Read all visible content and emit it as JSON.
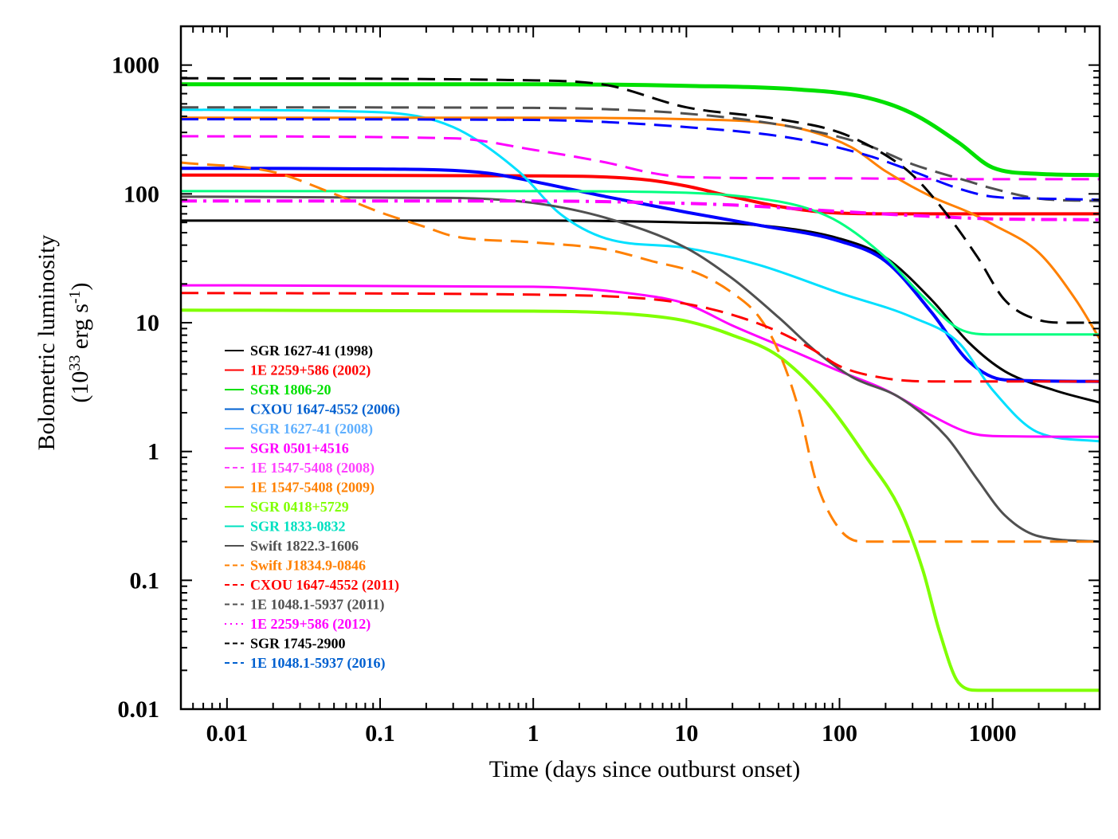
{
  "chart_data": {
    "type": "line",
    "title": "",
    "xlabel": "Time (days since outburst onset)",
    "ylabel": "Bolometric luminosity",
    "ylabel_units": "(10^33 erg s^-1)",
    "ylabel_units_parts": {
      "open": "(10",
      "exp1": "33",
      "mid": " erg s",
      "exp2": "-1",
      "close": ")"
    },
    "xscale": "log",
    "yscale": "log",
    "xlim": [
      0.005,
      5000
    ],
    "ylim": [
      0.01,
      2000
    ],
    "x_ticks": [
      {
        "value": 0.01,
        "label": "0.01"
      },
      {
        "value": 0.1,
        "label": "0.1"
      },
      {
        "value": 1,
        "label": "1"
      },
      {
        "value": 10,
        "label": "10"
      },
      {
        "value": 100,
        "label": "100"
      },
      {
        "value": 1000,
        "label": "1000"
      }
    ],
    "y_ticks": [
      {
        "value": 0.01,
        "label": "0.01"
      },
      {
        "value": 0.1,
        "label": "0.1"
      },
      {
        "value": 1,
        "label": "1"
      },
      {
        "value": 10,
        "label": "10"
      },
      {
        "value": 100,
        "label": "100"
      },
      {
        "value": 1000,
        "label": "1000"
      }
    ],
    "legend_position": "lower-left",
    "series": [
      {
        "name": "SGR 1627-41 (1998)",
        "color": "#000000",
        "dash": "solid",
        "width": 3,
        "points": [
          [
            0.005,
            62
          ],
          [
            1,
            62
          ],
          [
            10,
            60
          ],
          [
            30,
            57
          ],
          [
            100,
            45
          ],
          [
            200,
            32
          ],
          [
            400,
            15
          ],
          [
            700,
            7
          ],
          [
            1200,
            4.2
          ],
          [
            2500,
            3
          ],
          [
            5000,
            2.4
          ]
        ]
      },
      {
        "name": "1E 2259+586 (2002)",
        "color": "#ff0000",
        "dash": "solid",
        "width": 4,
        "points": [
          [
            0.005,
            140
          ],
          [
            1,
            138
          ],
          [
            5,
            130
          ],
          [
            10,
            115
          ],
          [
            20,
            95
          ],
          [
            40,
            80
          ],
          [
            80,
            72
          ],
          [
            200,
            70
          ],
          [
            1000,
            70
          ],
          [
            5000,
            70
          ]
        ]
      },
      {
        "name": "SGR 1806-20",
        "color": "#00e000",
        "dash": "solid",
        "width": 5,
        "points": [
          [
            0.005,
            710
          ],
          [
            1,
            710
          ],
          [
            10,
            690
          ],
          [
            50,
            650
          ],
          [
            150,
            560
          ],
          [
            300,
            420
          ],
          [
            600,
            250
          ],
          [
            1000,
            160
          ],
          [
            2000,
            143
          ],
          [
            5000,
            140
          ]
        ]
      },
      {
        "name": "CXOU 1647-4552 (2006)",
        "color": "#0000ff",
        "dash": "solid",
        "width": 4,
        "points": [
          [
            0.005,
            158
          ],
          [
            0.1,
            156
          ],
          [
            0.5,
            145
          ],
          [
            1,
            125
          ],
          [
            3,
            95
          ],
          [
            10,
            72
          ],
          [
            30,
            57
          ],
          [
            100,
            43
          ],
          [
            200,
            30
          ],
          [
            400,
            12
          ],
          [
            700,
            5
          ],
          [
            1200,
            3.6
          ],
          [
            5000,
            3.5
          ]
        ]
      },
      {
        "name": "SGR 1627-41 (2008)",
        "color": "#00e0ff",
        "dash": "solid",
        "width": 3,
        "points": [
          [
            0.005,
            450
          ],
          [
            0.1,
            430
          ],
          [
            0.3,
            330
          ],
          [
            0.8,
            150
          ],
          [
            1.5,
            70
          ],
          [
            3,
            45
          ],
          [
            10,
            38
          ],
          [
            30,
            28
          ],
          [
            100,
            17
          ],
          [
            300,
            11
          ],
          [
            600,
            7
          ],
          [
            1000,
            3
          ],
          [
            2000,
            1.4
          ],
          [
            5000,
            1.2
          ]
        ]
      },
      {
        "name": "SGR 0501+4516",
        "color": "#ff00ff",
        "dash": "solid",
        "width": 3,
        "points": [
          [
            0.005,
            19.5
          ],
          [
            1,
            19
          ],
          [
            5,
            16.5
          ],
          [
            10,
            14
          ],
          [
            20,
            9.5
          ],
          [
            50,
            6
          ],
          [
            100,
            4.2
          ],
          [
            200,
            3
          ],
          [
            400,
            1.9
          ],
          [
            700,
            1.4
          ],
          [
            1000,
            1.32
          ],
          [
            5000,
            1.3
          ]
        ]
      },
      {
        "name": "1E 1547-5408 (2008)",
        "color": "#ff00ff",
        "dash": "dashed",
        "width": 3,
        "points": [
          [
            0.005,
            280
          ],
          [
            0.3,
            270
          ],
          [
            1,
            220
          ],
          [
            3,
            175
          ],
          [
            6,
            145
          ],
          [
            10,
            135
          ],
          [
            100,
            132
          ],
          [
            1000,
            130
          ],
          [
            5000,
            130
          ]
        ]
      },
      {
        "name": "1E 1547-5408 (2009)",
        "color": "#ff8000",
        "dash": "solid",
        "width": 3,
        "points": [
          [
            0.005,
            390
          ],
          [
            1,
            390
          ],
          [
            10,
            380
          ],
          [
            50,
            330
          ],
          [
            120,
            230
          ],
          [
            200,
            150
          ],
          [
            400,
            95
          ],
          [
            700,
            72
          ],
          [
            1000,
            58
          ],
          [
            2000,
            35
          ],
          [
            3500,
            15
          ],
          [
            5000,
            7.5
          ]
        ]
      },
      {
        "name": "SGR 0418+5729",
        "color": "#80ff00",
        "dash": "solid",
        "width": 4,
        "points": [
          [
            0.005,
            12.5
          ],
          [
            1,
            12.3
          ],
          [
            5,
            11.5
          ],
          [
            10,
            10.3
          ],
          [
            20,
            8
          ],
          [
            40,
            5.5
          ],
          [
            80,
            2.5
          ],
          [
            150,
            0.9
          ],
          [
            250,
            0.35
          ],
          [
            350,
            0.12
          ],
          [
            450,
            0.04
          ],
          [
            600,
            0.016
          ],
          [
            800,
            0.014
          ],
          [
            5000,
            0.014
          ]
        ]
      },
      {
        "name": "SGR 1833-0832",
        "color": "#00ff80",
        "dash": "solid",
        "width": 3,
        "points": [
          [
            0.005,
            105
          ],
          [
            1,
            105
          ],
          [
            10,
            102
          ],
          [
            30,
            92
          ],
          [
            60,
            78
          ],
          [
            100,
            60
          ],
          [
            200,
            32
          ],
          [
            350,
            16
          ],
          [
            600,
            9
          ],
          [
            1000,
            8.1
          ],
          [
            5000,
            8.1
          ]
        ]
      },
      {
        "name": "Swift 1822.3-1606",
        "color": "#505050",
        "dash": "solid",
        "width": 3,
        "points": [
          [
            0.005,
            95
          ],
          [
            0.3,
            93
          ],
          [
            1,
            85
          ],
          [
            3,
            65
          ],
          [
            10,
            38
          ],
          [
            20,
            22
          ],
          [
            40,
            11
          ],
          [
            70,
            6
          ],
          [
            120,
            3.8
          ],
          [
            250,
            2.6
          ],
          [
            500,
            1.3
          ],
          [
            800,
            0.6
          ],
          [
            1200,
            0.32
          ],
          [
            2000,
            0.22
          ],
          [
            5000,
            0.2
          ]
        ]
      },
      {
        "name": "Swift J1834.9-0846",
        "color": "#ff8000",
        "dash": "dashed",
        "width": 3,
        "points": [
          [
            0.005,
            175
          ],
          [
            0.02,
            148
          ],
          [
            0.05,
            100
          ],
          [
            0.1,
            72
          ],
          [
            0.2,
            55
          ],
          [
            0.3,
            47
          ],
          [
            1,
            42
          ],
          [
            3,
            37
          ],
          [
            6,
            30
          ],
          [
            12,
            24
          ],
          [
            20,
            17
          ],
          [
            30,
            11
          ],
          [
            40,
            6
          ],
          [
            55,
            2
          ],
          [
            70,
            0.6
          ],
          [
            100,
            0.25
          ],
          [
            140,
            0.2
          ],
          [
            5000,
            0.2
          ]
        ]
      },
      {
        "name": "CXOU 1647-4552 (2011)",
        "color": "#ff0000",
        "dash": "dashed",
        "width": 3,
        "points": [
          [
            0.005,
            17
          ],
          [
            1,
            16.5
          ],
          [
            5,
            15.5
          ],
          [
            10,
            14
          ],
          [
            20,
            11.5
          ],
          [
            40,
            8.5
          ],
          [
            70,
            6
          ],
          [
            100,
            4.6
          ],
          [
            200,
            3.7
          ],
          [
            400,
            3.5
          ],
          [
            5000,
            3.5
          ]
        ]
      },
      {
        "name": "1E 1048.1-5937 (2011)",
        "color": "#505050",
        "dash": "dashed",
        "width": 3,
        "points": [
          [
            0.005,
            470
          ],
          [
            1,
            465
          ],
          [
            10,
            420
          ],
          [
            50,
            330
          ],
          [
            150,
            240
          ],
          [
            300,
            170
          ],
          [
            700,
            125
          ],
          [
            1000,
            110
          ],
          [
            2000,
            92
          ],
          [
            5000,
            88
          ]
        ]
      },
      {
        "name": "1E 2259+586 (2012)",
        "color": "#ff00ff",
        "dash": "dashdot",
        "width": 4,
        "points": [
          [
            0.005,
            88
          ],
          [
            1,
            88
          ],
          [
            5,
            86
          ],
          [
            20,
            82
          ],
          [
            50,
            77
          ],
          [
            100,
            73
          ],
          [
            300,
            68
          ],
          [
            1000,
            64
          ],
          [
            5000,
            63
          ]
        ]
      },
      {
        "name": "SGR 1745-2900",
        "color": "#000000",
        "dash": "dashed",
        "width": 3,
        "points": [
          [
            0.005,
            790
          ],
          [
            1,
            760
          ],
          [
            3,
            700
          ],
          [
            10,
            470
          ],
          [
            40,
            380
          ],
          [
            100,
            300
          ],
          [
            200,
            200
          ],
          [
            300,
            140
          ],
          [
            500,
            70
          ],
          [
            800,
            32
          ],
          [
            1200,
            15
          ],
          [
            2000,
            10.5
          ],
          [
            3000,
            10
          ],
          [
            5000,
            10
          ]
        ]
      },
      {
        "name": "1E 1048.1-5937 (2016)",
        "color": "#0000ff",
        "dash": "dashed",
        "width": 3,
        "points": [
          [
            0.005,
            380
          ],
          [
            1,
            375
          ],
          [
            10,
            330
          ],
          [
            50,
            270
          ],
          [
            150,
            200
          ],
          [
            300,
            150
          ],
          [
            600,
            110
          ],
          [
            1000,
            95
          ],
          [
            2000,
            92
          ],
          [
            5000,
            90
          ]
        ]
      }
    ],
    "legend": [
      {
        "label": "SGR 1627-41 (1998)",
        "line_color": "#000000",
        "text_color": "#000000",
        "dash": "solid"
      },
      {
        "label": "1E 2259+586 (2002)",
        "line_color": "#ff0000",
        "text_color": "#ff0000",
        "dash": "solid"
      },
      {
        "label": "SGR 1806-20",
        "line_color": "#00e000",
        "text_color": "#00e000",
        "dash": "solid"
      },
      {
        "label": "CXOU 1647-4552 (2006)",
        "line_color": "#0060d0",
        "text_color": "#0060d0",
        "dash": "solid"
      },
      {
        "label": "SGR 1627-41 (2008)",
        "line_color": "#60b0ff",
        "text_color": "#60b0ff",
        "dash": "solid"
      },
      {
        "label": "SGR 0501+4516",
        "line_color": "#ff00ff",
        "text_color": "#ff00ff",
        "dash": "solid"
      },
      {
        "label": "1E 1547-5408 (2008)",
        "line_color": "#ff40ff",
        "text_color": "#ff40ff",
        "dash": "dashed"
      },
      {
        "label": "1E 1547-5408 (2009)",
        "line_color": "#ff8000",
        "text_color": "#ff8000",
        "dash": "solid"
      },
      {
        "label": "SGR 0418+5729",
        "line_color": "#80ff00",
        "text_color": "#80ff00",
        "dash": "solid"
      },
      {
        "label": "SGR 1833-0832",
        "line_color": "#00e0c0",
        "text_color": "#00e0c0",
        "dash": "solid"
      },
      {
        "label": "Swift 1822.3-1606",
        "line_color": "#505050",
        "text_color": "#505050",
        "dash": "solid"
      },
      {
        "label": "Swift J1834.9-0846",
        "line_color": "#ff8000",
        "text_color": "#ff8000",
        "dash": "dashed"
      },
      {
        "label": "CXOU 1647-4552 (2011)",
        "line_color": "#ff0000",
        "text_color": "#ff0000",
        "dash": "dashed"
      },
      {
        "label": "1E 1048.1-5937 (2011)",
        "line_color": "#505050",
        "text_color": "#505050",
        "dash": "dashed"
      },
      {
        "label": "1E 2259+586 (2012)",
        "line_color": "#ff00ff",
        "text_color": "#ff00ff",
        "dash": "dotted"
      },
      {
        "label": "SGR 1745-2900",
        "line_color": "#000000",
        "text_color": "#000000",
        "dash": "dashed"
      },
      {
        "label": "1E 1048.1-5937 (2016)",
        "line_color": "#0060d0",
        "text_color": "#0060d0",
        "dash": "dashed"
      }
    ]
  }
}
